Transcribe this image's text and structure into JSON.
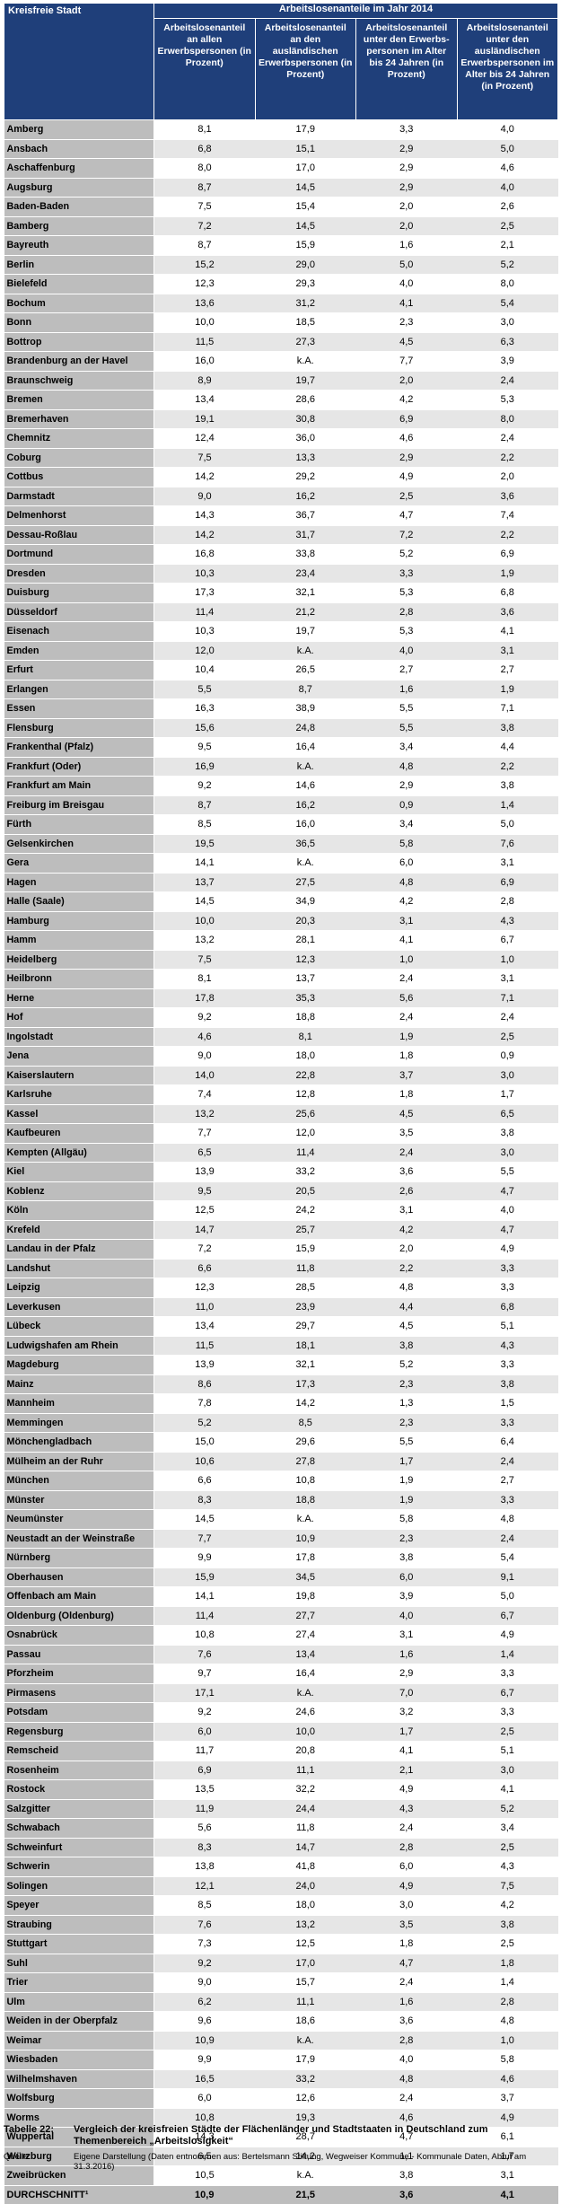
{
  "header": {
    "city_col": "Kreisfreie Stadt",
    "group": "Arbeitslosenanteile im Jahr 2014",
    "columns": [
      "Arbeitslosenanteil an allen Erwerbspersonen (in Prozent)",
      "Arbeitslosenanteil an den ausländischen Erwerbspersonen (in Prozent)",
      "Arbeitslosenanteil unter den Erwerbs-personen im Alter bis 24 Jahren (in Prozent)",
      "Arbeitslosenanteil unter den ausländischen Erwerbspersonen im Alter bis 24 Jahren (in Prozent)"
    ]
  },
  "rows": [
    [
      "Amberg",
      "8,1",
      "17,9",
      "3,3",
      "4,0"
    ],
    [
      "Ansbach",
      "6,8",
      "15,1",
      "2,9",
      "5,0"
    ],
    [
      "Aschaffenburg",
      "8,0",
      "17,0",
      "2,9",
      "4,6"
    ],
    [
      "Augsburg",
      "8,7",
      "14,5",
      "2,9",
      "4,0"
    ],
    [
      "Baden-Baden",
      "7,5",
      "15,4",
      "2,0",
      "2,6"
    ],
    [
      "Bamberg",
      "7,2",
      "14,5",
      "2,0",
      "2,5"
    ],
    [
      "Bayreuth",
      "8,7",
      "15,9",
      "1,6",
      "2,1"
    ],
    [
      "Berlin",
      "15,2",
      "29,0",
      "5,0",
      "5,2"
    ],
    [
      "Bielefeld",
      "12,3",
      "29,3",
      "4,0",
      "8,0"
    ],
    [
      "Bochum",
      "13,6",
      "31,2",
      "4,1",
      "5,4"
    ],
    [
      "Bonn",
      "10,0",
      "18,5",
      "2,3",
      "3,0"
    ],
    [
      "Bottrop",
      "11,5",
      "27,3",
      "4,5",
      "6,3"
    ],
    [
      "Brandenburg an der Havel",
      "16,0",
      "k.A.",
      "7,7",
      "3,9"
    ],
    [
      "Braunschweig",
      "8,9",
      "19,7",
      "2,0",
      "2,4"
    ],
    [
      "Bremen",
      "13,4",
      "28,6",
      "4,2",
      "5,3"
    ],
    [
      "Bremerhaven",
      "19,1",
      "30,8",
      "6,9",
      "8,0"
    ],
    [
      "Chemnitz",
      "12,4",
      "36,0",
      "4,6",
      "2,4"
    ],
    [
      "Coburg",
      "7,5",
      "13,3",
      "2,9",
      "2,2"
    ],
    [
      "Cottbus",
      "14,2",
      "29,2",
      "4,9",
      "2,0"
    ],
    [
      "Darmstadt",
      "9,0",
      "16,2",
      "2,5",
      "3,6"
    ],
    [
      "Delmenhorst",
      "14,3",
      "36,7",
      "4,7",
      "7,4"
    ],
    [
      "Dessau-Roßlau",
      "14,2",
      "31,7",
      "7,2",
      "2,2"
    ],
    [
      "Dortmund",
      "16,8",
      "33,8",
      "5,2",
      "6,9"
    ],
    [
      "Dresden",
      "10,3",
      "23,4",
      "3,3",
      "1,9"
    ],
    [
      "Duisburg",
      "17,3",
      "32,1",
      "5,3",
      "6,8"
    ],
    [
      "Düsseldorf",
      "11,4",
      "21,2",
      "2,8",
      "3,6"
    ],
    [
      "Eisenach",
      "10,3",
      "19,7",
      "5,3",
      "4,1"
    ],
    [
      "Emden",
      "12,0",
      "k.A.",
      "4,0",
      "3,1"
    ],
    [
      "Erfurt",
      "10,4",
      "26,5",
      "2,7",
      "2,7"
    ],
    [
      "Erlangen",
      "5,5",
      "8,7",
      "1,6",
      "1,9"
    ],
    [
      "Essen",
      "16,3",
      "38,9",
      "5,5",
      "7,1"
    ],
    [
      "Flensburg",
      "15,6",
      "24,8",
      "5,5",
      "3,8"
    ],
    [
      "Frankenthal (Pfalz)",
      "9,5",
      "16,4",
      "3,4",
      "4,4"
    ],
    [
      "Frankfurt (Oder)",
      "16,9",
      "k.A.",
      "4,8",
      "2,2"
    ],
    [
      "Frankfurt am Main",
      "9,2",
      "14,6",
      "2,9",
      "3,8"
    ],
    [
      "Freiburg im Breisgau",
      "8,7",
      "16,2",
      "0,9",
      "1,4"
    ],
    [
      "Fürth",
      "8,5",
      "16,0",
      "3,4",
      "5,0"
    ],
    [
      "Gelsenkirchen",
      "19,5",
      "36,5",
      "5,8",
      "7,6"
    ],
    [
      "Gera",
      "14,1",
      "k.A.",
      "6,0",
      "3,1"
    ],
    [
      "Hagen",
      "13,7",
      "27,5",
      "4,8",
      "6,9"
    ],
    [
      "Halle (Saale)",
      "14,5",
      "34,9",
      "4,2",
      "2,8"
    ],
    [
      "Hamburg",
      "10,0",
      "20,3",
      "3,1",
      "4,3"
    ],
    [
      "Hamm",
      "13,2",
      "28,1",
      "4,1",
      "6,7"
    ],
    [
      "Heidelberg",
      "7,5",
      "12,3",
      "1,0",
      "1,0"
    ],
    [
      "Heilbronn",
      "8,1",
      "13,7",
      "2,4",
      "3,1"
    ],
    [
      "Herne",
      "17,8",
      "35,3",
      "5,6",
      "7,1"
    ],
    [
      "Hof",
      "9,2",
      "18,8",
      "2,4",
      "2,4"
    ],
    [
      "Ingolstadt",
      "4,6",
      "8,1",
      "1,9",
      "2,5"
    ],
    [
      "Jena",
      "9,0",
      "18,0",
      "1,8",
      "0,9"
    ],
    [
      "Kaiserslautern",
      "14,0",
      "22,8",
      "3,7",
      "3,0"
    ],
    [
      "Karlsruhe",
      "7,4",
      "12,8",
      "1,8",
      "1,7"
    ],
    [
      "Kassel",
      "13,2",
      "25,6",
      "4,5",
      "6,5"
    ],
    [
      "Kaufbeuren",
      "7,7",
      "12,0",
      "3,5",
      "3,8"
    ],
    [
      "Kempten (Allgäu)",
      "6,5",
      "11,4",
      "2,4",
      "3,0"
    ],
    [
      "Kiel",
      "13,9",
      "33,2",
      "3,6",
      "5,5"
    ],
    [
      "Koblenz",
      "9,5",
      "20,5",
      "2,6",
      "4,7"
    ],
    [
      "Köln",
      "12,5",
      "24,2",
      "3,1",
      "4,0"
    ],
    [
      "Krefeld",
      "14,7",
      "25,7",
      "4,2",
      "4,7"
    ],
    [
      "Landau in der Pfalz",
      "7,2",
      "15,9",
      "2,0",
      "4,9"
    ],
    [
      "Landshut",
      "6,6",
      "11,8",
      "2,2",
      "3,3"
    ],
    [
      "Leipzig",
      "12,3",
      "28,5",
      "4,8",
      "3,3"
    ],
    [
      "Leverkusen",
      "11,0",
      "23,9",
      "4,4",
      "6,8"
    ],
    [
      "Lübeck",
      "13,4",
      "29,7",
      "4,5",
      "5,1"
    ],
    [
      "Ludwigshafen am Rhein",
      "11,5",
      "18,1",
      "3,8",
      "4,3"
    ],
    [
      "Magdeburg",
      "13,9",
      "32,1",
      "5,2",
      "3,3"
    ],
    [
      "Mainz",
      "8,6",
      "17,3",
      "2,3",
      "3,8"
    ],
    [
      "Mannheim",
      "7,8",
      "14,2",
      "1,3",
      "1,5"
    ],
    [
      "Memmingen",
      "5,2",
      "8,5",
      "2,3",
      "3,3"
    ],
    [
      "Mönchengladbach",
      "15,0",
      "29,6",
      "5,5",
      "6,4"
    ],
    [
      "Mülheim an der Ruhr",
      "10,6",
      "27,8",
      "1,7",
      "2,4"
    ],
    [
      "München",
      "6,6",
      "10,8",
      "1,9",
      "2,7"
    ],
    [
      "Münster",
      "8,3",
      "18,8",
      "1,9",
      "3,3"
    ],
    [
      "Neumünster",
      "14,5",
      "k.A.",
      "5,8",
      "4,8"
    ],
    [
      "Neustadt an der Weinstraße",
      "7,7",
      "10,9",
      "2,3",
      "2,4"
    ],
    [
      "Nürnberg",
      "9,9",
      "17,8",
      "3,8",
      "5,4"
    ],
    [
      "Oberhausen",
      "15,9",
      "34,5",
      "6,0",
      "9,1"
    ],
    [
      "Offenbach am Main",
      "14,1",
      "19,8",
      "3,9",
      "5,0"
    ],
    [
      "Oldenburg (Oldenburg)",
      "11,4",
      "27,7",
      "4,0",
      "6,7"
    ],
    [
      "Osnabrück",
      "10,8",
      "27,4",
      "3,1",
      "4,9"
    ],
    [
      "Passau",
      "7,6",
      "13,4",
      "1,6",
      "1,4"
    ],
    [
      "Pforzheim",
      "9,7",
      "16,4",
      "2,9",
      "3,3"
    ],
    [
      "Pirmasens",
      "17,1",
      "k.A.",
      "7,0",
      "6,7"
    ],
    [
      "Potsdam",
      "9,2",
      "24,6",
      "3,2",
      "3,3"
    ],
    [
      "Regensburg",
      "6,0",
      "10,0",
      "1,7",
      "2,5"
    ],
    [
      "Remscheid",
      "11,7",
      "20,8",
      "4,1",
      "5,1"
    ],
    [
      "Rosenheim",
      "6,9",
      "11,1",
      "2,1",
      "3,0"
    ],
    [
      "Rostock",
      "13,5",
      "32,2",
      "4,9",
      "4,1"
    ],
    [
      "Salzgitter",
      "11,9",
      "24,4",
      "4,3",
      "5,2"
    ],
    [
      "Schwabach",
      "5,6",
      "11,8",
      "2,4",
      "3,4"
    ],
    [
      "Schweinfurt",
      "8,3",
      "14,7",
      "2,8",
      "2,5"
    ],
    [
      "Schwerin",
      "13,8",
      "41,8",
      "6,0",
      "4,3"
    ],
    [
      "Solingen",
      "12,1",
      "24,0",
      "4,9",
      "7,5"
    ],
    [
      "Speyer",
      "8,5",
      "18,0",
      "3,0",
      "4,2"
    ],
    [
      "Straubing",
      "7,6",
      "13,2",
      "3,5",
      "3,8"
    ],
    [
      "Stuttgart",
      "7,3",
      "12,5",
      "1,8",
      "2,5"
    ],
    [
      "Suhl",
      "9,2",
      "17,0",
      "4,7",
      "1,8"
    ],
    [
      "Trier",
      "9,0",
      "15,7",
      "2,4",
      "1,4"
    ],
    [
      "Ulm",
      "6,2",
      "11,1",
      "1,6",
      "2,8"
    ],
    [
      "Weiden in der Oberpfalz",
      "9,6",
      "18,6",
      "3,6",
      "4,8"
    ],
    [
      "Weimar",
      "10,9",
      "k.A.",
      "2,8",
      "1,0"
    ],
    [
      "Wiesbaden",
      "9,9",
      "17,9",
      "4,0",
      "5,8"
    ],
    [
      "Wilhelmshaven",
      "16,5",
      "33,2",
      "4,8",
      "4,6"
    ],
    [
      "Wolfsburg",
      "6,0",
      "12,6",
      "2,4",
      "3,7"
    ],
    [
      "Worms",
      "10,8",
      "19,3",
      "4,6",
      "4,9"
    ],
    [
      "Wuppertal",
      "14,3",
      "28,7",
      "4,7",
      "6,1"
    ],
    [
      "Würzburg",
      "6,5",
      "14,2",
      "1,1",
      "1,7"
    ],
    [
      "Zweibrücken",
      "10,5",
      "k.A.",
      "3,8",
      "3,1"
    ]
  ],
  "total": [
    "DURCHSCHNITT¹",
    "10,9",
    "21,5",
    "3,6",
    "4,1"
  ],
  "caption": {
    "label": "Tabelle 22:",
    "text": "Vergleich der kreisfreien Städte der Flächenländer und Stadtstaaten in Deutschland zum Themenbereich „Arbeitslosigkeit“"
  },
  "source": {
    "label": "Quelle:",
    "text": "Eigene Darstellung (Daten entnommen aus: Bertelsmann Stiftung, Wegweiser Kommune - Kommunale Daten, Abruf am 31.3.2016)"
  }
}
